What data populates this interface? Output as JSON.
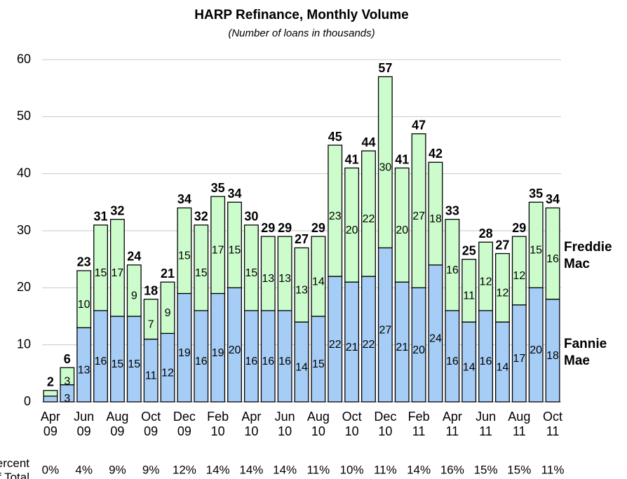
{
  "chart_data": {
    "type": "stacked_bar",
    "title": "HARP Refinance, Monthly Volume",
    "subtitle": "(Number of loans in thousands)",
    "categories": [
      "Apr\n09",
      null,
      "Jun\n09",
      null,
      "Aug\n09",
      null,
      "Oct\n09",
      null,
      "Dec\n09",
      null,
      "Feb\n10",
      null,
      "Apr\n10",
      null,
      "Jun\n10",
      null,
      "Aug\n10",
      null,
      "Oct\n10",
      null,
      "Dec\n10",
      null,
      "Feb\n11",
      null,
      "Apr\n11",
      null,
      "Jun\n11",
      null,
      "Aug\n11",
      null,
      "Oct\n11"
    ],
    "series": [
      {
        "name": "Fannie\nMae",
        "color": "#a6cdf5",
        "values": [
          1,
          3,
          13,
          16,
          15,
          15,
          11,
          12,
          19,
          16,
          19,
          20,
          16,
          16,
          16,
          14,
          15,
          22,
          21,
          22,
          27,
          21,
          20,
          24,
          16,
          14,
          16,
          14,
          17,
          20,
          18
        ],
        "value_labels": [
          null,
          "3",
          "13",
          "16",
          "15",
          "15",
          "11",
          "12",
          "19",
          "16",
          "19",
          "20",
          "16",
          "16",
          "16",
          "14",
          "15",
          "22",
          "21",
          "22",
          "27",
          "21",
          "20",
          "24",
          "16",
          "14",
          "16",
          "14",
          "17",
          "20",
          "18"
        ]
      },
      {
        "name": "Freddie\nMac",
        "color": "#ccfccc",
        "values": [
          1,
          3,
          10,
          15,
          17,
          9,
          7,
          9,
          15,
          15,
          17,
          15,
          15,
          13,
          13,
          13,
          14,
          23,
          20,
          22,
          30,
          20,
          27,
          18,
          16,
          11,
          12,
          12,
          12,
          15,
          16
        ],
        "value_labels": [
          null,
          "3",
          "10",
          "15",
          "17",
          "9",
          "7",
          "9",
          "15",
          "15",
          "17",
          "15",
          "15",
          "13",
          "13",
          "13",
          "14",
          "23",
          "20",
          "22",
          "30",
          "20",
          "27",
          "18",
          "16",
          "11",
          "12",
          "12",
          "12",
          "15",
          "16"
        ]
      }
    ],
    "totals": [
      2,
      6,
      23,
      31,
      32,
      24,
      18,
      21,
      34,
      32,
      35,
      34,
      30,
      29,
      29,
      27,
      29,
      45,
      41,
      44,
      57,
      41,
      47,
      42,
      33,
      25,
      28,
      27,
      29,
      35,
      34
    ],
    "percent_of_total": {
      "label": "Percent of Total",
      "values": [
        0,
        4,
        9,
        9,
        12,
        14,
        14,
        14,
        11,
        10,
        11,
        14,
        16,
        15,
        15,
        11
      ],
      "value_labels": [
        "0%",
        "4%",
        "9%",
        "9%",
        "12%",
        "14%",
        "14%",
        "14%",
        "11%",
        "10%",
        "11%",
        "14%",
        "16%",
        "15%",
        "15%",
        "11%"
      ]
    },
    "ylim": [
      0,
      60
    ],
    "yticks": [
      0,
      10,
      20,
      30,
      40,
      50,
      60
    ],
    "grid": true
  }
}
